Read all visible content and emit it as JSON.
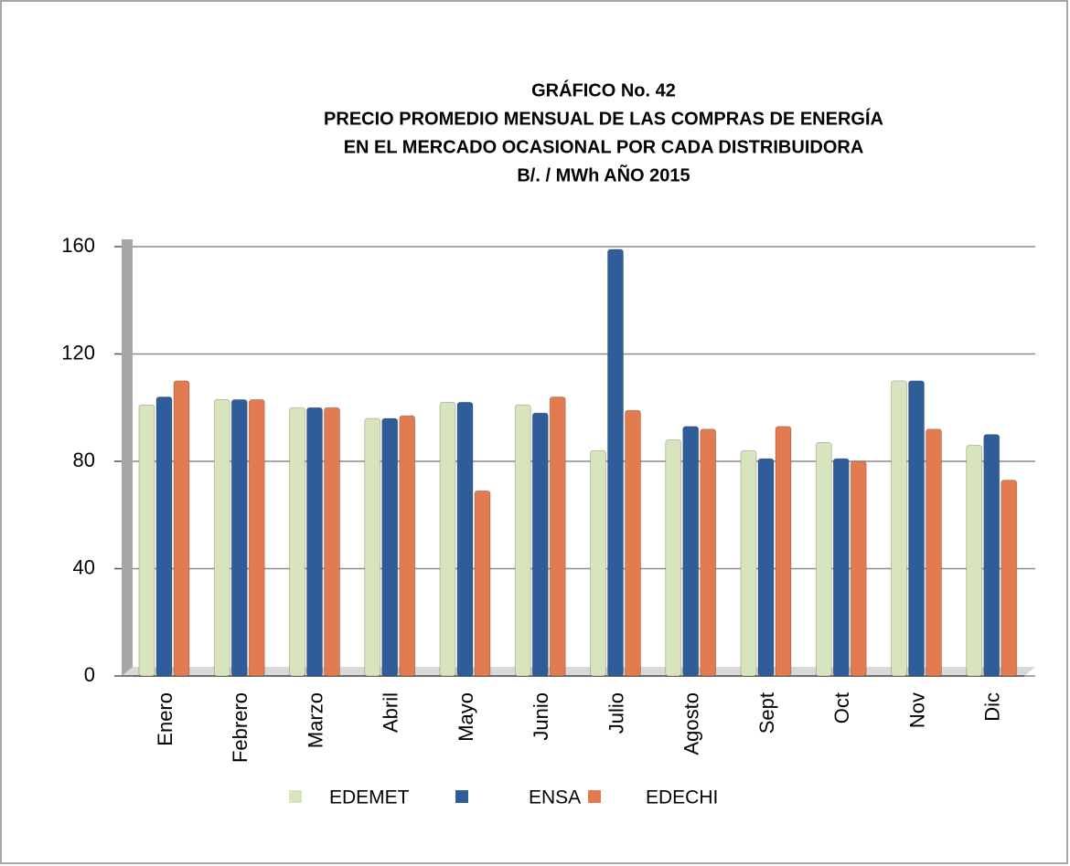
{
  "chart_data": {
    "type": "bar",
    "title": [
      "GRÁFICO  No.  42",
      "PRECIO PROMEDIO MENSUAL  DE LAS COMPRAS DE ENERGÍA",
      "EN EL MERCADO OCASIONAL POR  CADA  DISTRIBUIDORA",
      "B/.  /  MWh      AÑO   2015"
    ],
    "categories": [
      "Enero",
      "Febrero",
      "Marzo",
      "Abril",
      "Mayo",
      "Junio",
      "Julio",
      "Agosto",
      "Sept",
      "Oct",
      "Nov",
      "Dic"
    ],
    "series": [
      {
        "name": "EDEMET",
        "color": "#d7e4bd",
        "values": [
          101,
          103,
          100,
          96,
          102,
          101,
          84,
          88,
          84,
          87,
          110,
          86
        ]
      },
      {
        "name": "ENSA",
        "color": "#2e5d99",
        "values": [
          104,
          103,
          100,
          96,
          102,
          98,
          159,
          93,
          81,
          81,
          110,
          90
        ]
      },
      {
        "name": "EDECHI",
        "color": "#e27b50",
        "values": [
          110,
          103,
          100,
          97,
          69,
          104,
          99,
          92,
          93,
          80,
          92,
          73
        ]
      }
    ],
    "ylim": [
      0,
      160
    ],
    "yticks": [
      0,
      40,
      80,
      120,
      160
    ],
    "grid": true
  }
}
